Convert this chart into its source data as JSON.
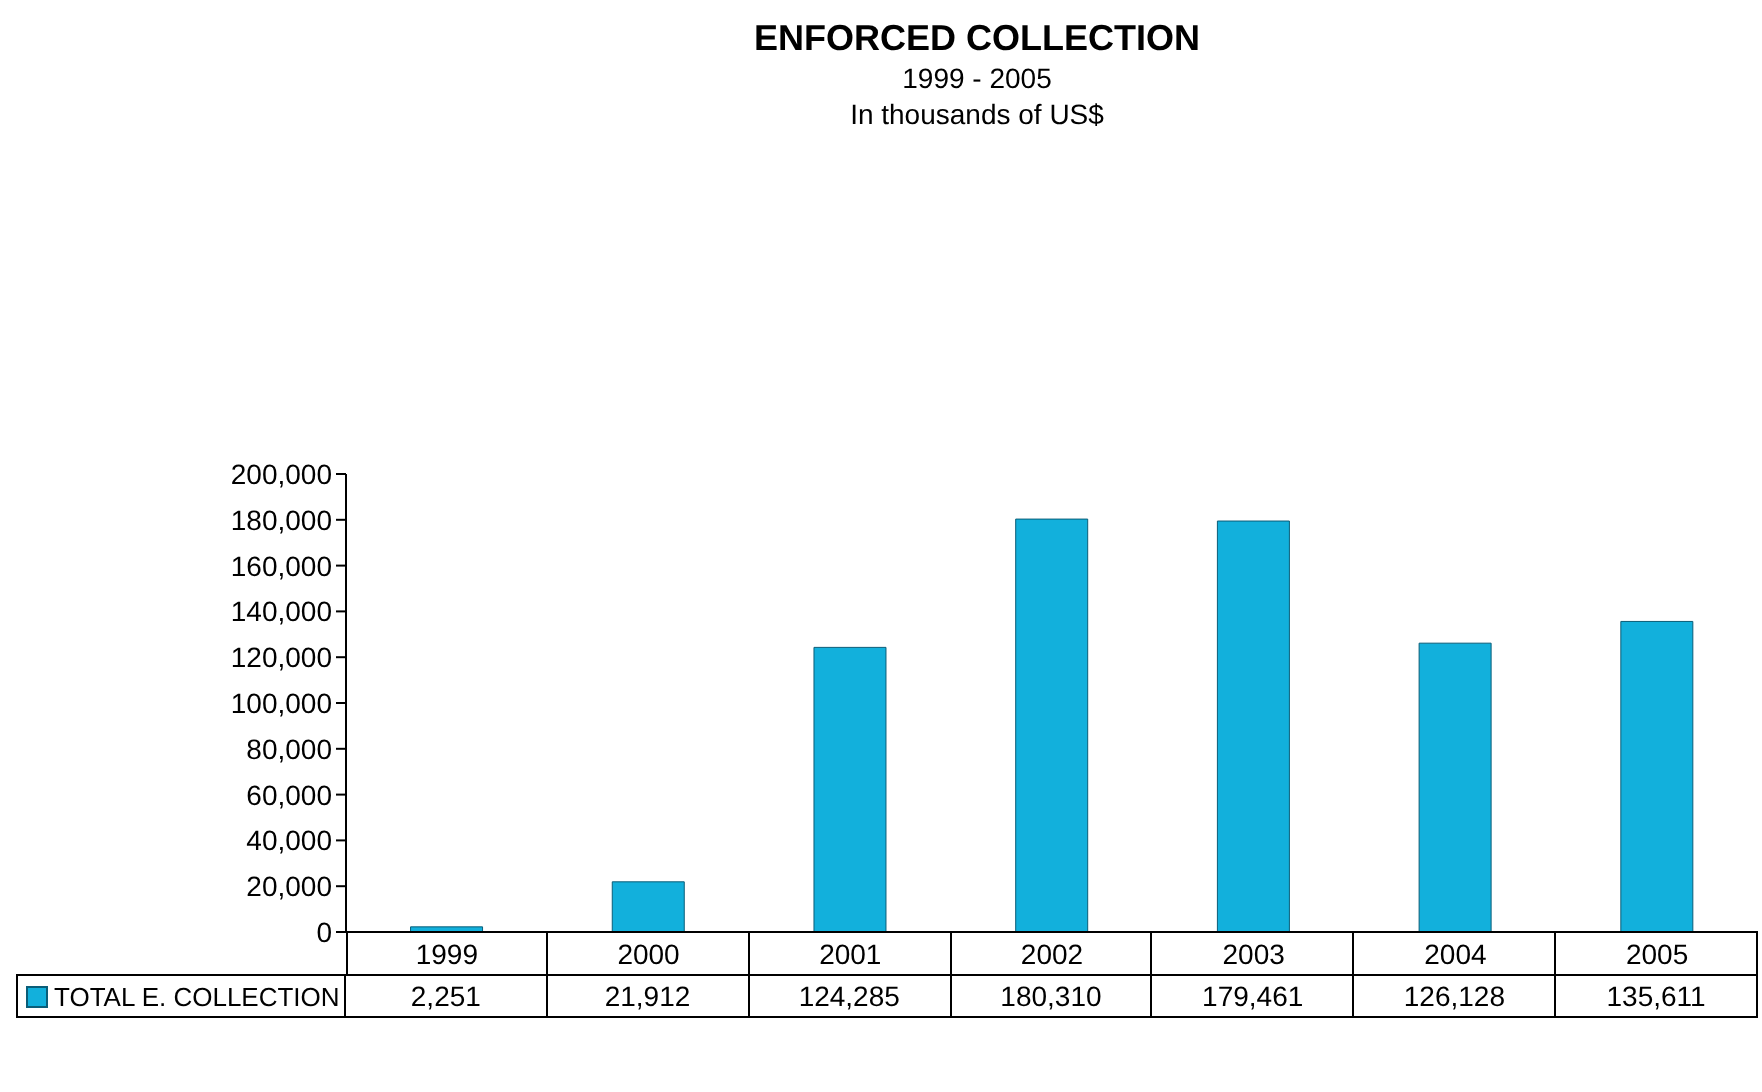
{
  "chart_data": {
    "type": "bar",
    "title": "ENFORCED COLLECTION",
    "subtitle": "1999 - 2005\nIn thousands of US$",
    "categories": [
      "1999",
      "2000",
      "2001",
      "2002",
      "2003",
      "2004",
      "2005"
    ],
    "series": [
      {
        "name": "TOTAL E. COLLECTION",
        "color": "#12b0dc",
        "values": [
          2251,
          21912,
          124285,
          180310,
          179461,
          126128,
          135611
        ]
      }
    ],
    "value_labels": [
      "2,251",
      "21,912",
      "124,285",
      "180,310",
      "179,461",
      "126,128",
      "135,611"
    ],
    "ylim": [
      0,
      200000
    ],
    "yticks": [
      {
        "value": 0,
        "label": "0"
      },
      {
        "value": 20000,
        "label": "20,000"
      },
      {
        "value": 40000,
        "label": "40,000"
      },
      {
        "value": 60000,
        "label": "60,000"
      },
      {
        "value": 80000,
        "label": "80,000"
      },
      {
        "value": 100000,
        "label": "100,000"
      },
      {
        "value": 120000,
        "label": "120,000"
      },
      {
        "value": 140000,
        "label": "140,000"
      },
      {
        "value": 160000,
        "label": "160,000"
      },
      {
        "value": 180000,
        "label": "180,000"
      },
      {
        "value": 200000,
        "label": "200,000"
      }
    ],
    "grid": false,
    "legend": "bottom left"
  }
}
